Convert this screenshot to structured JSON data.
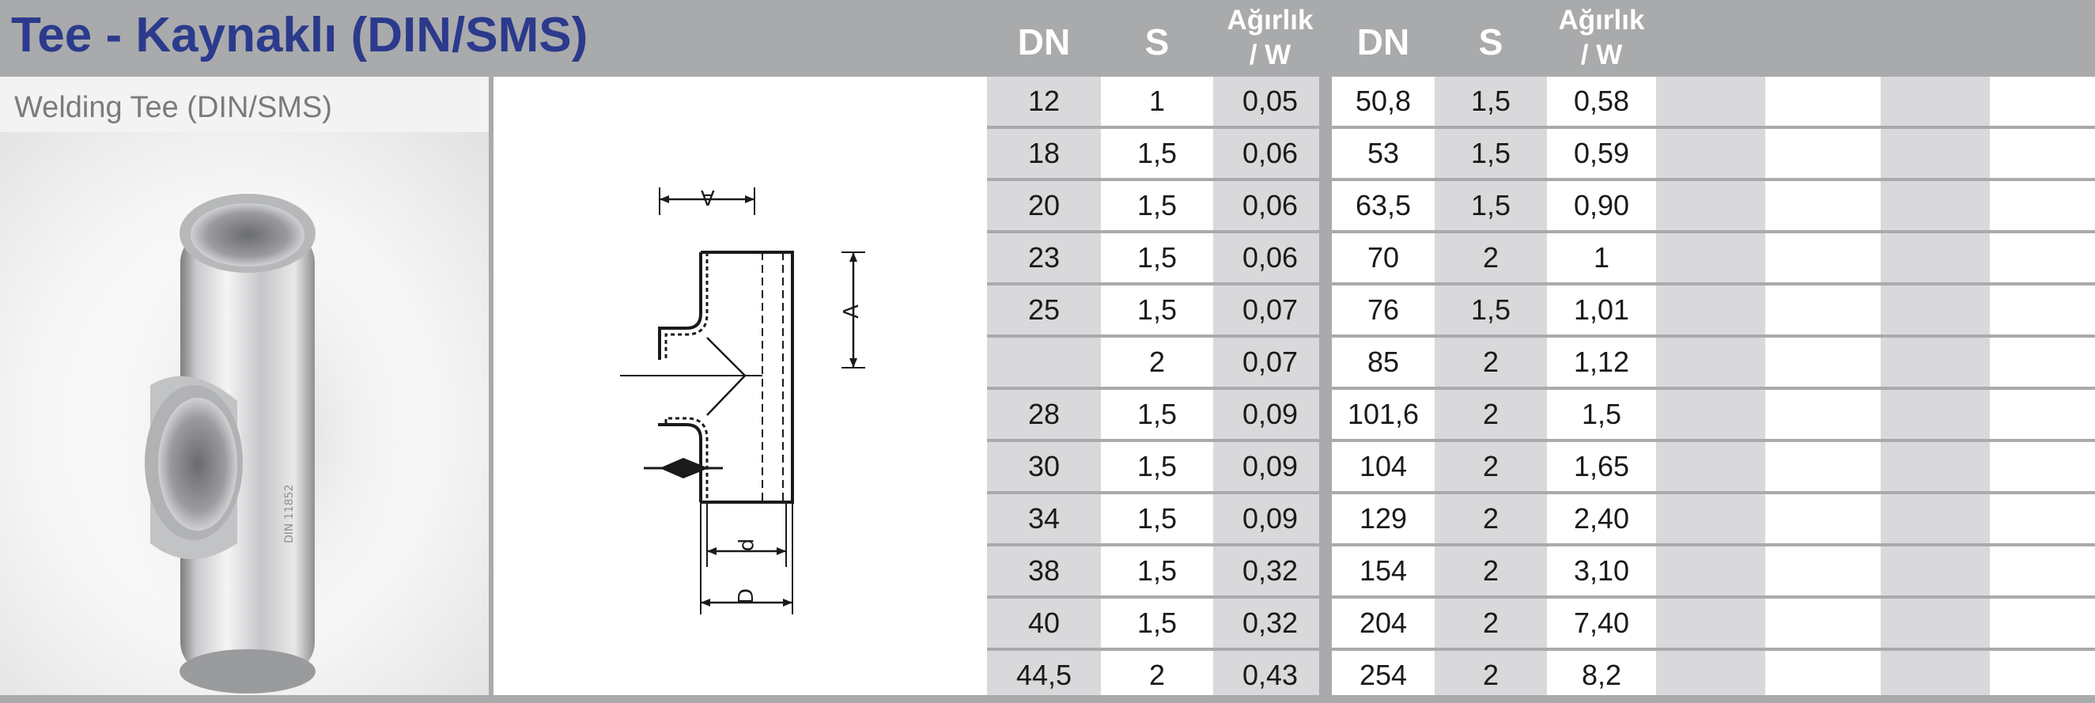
{
  "title": "Tee - Kaynaklı (DIN/SMS)",
  "subtitle": "Welding Tee (DIN/SMS)",
  "table": {
    "headers": {
      "dn1": "DN",
      "s1": "S",
      "w1_line1": "Ağırlık",
      "w1_line2": "/ W",
      "dn2": "DN",
      "s2": "S",
      "w2_line1": "Ağırlık",
      "w2_line2": "/ W"
    },
    "rows": [
      {
        "dn1": "12",
        "s1": "1",
        "w1": "0,05",
        "dn2": "50,8",
        "s2": "1,5",
        "w2": "0,58"
      },
      {
        "dn1": "18",
        "s1": "1,5",
        "w1": "0,06",
        "dn2": "53",
        "s2": "1,5",
        "w2": "0,59"
      },
      {
        "dn1": "20",
        "s1": "1,5",
        "w1": "0,06",
        "dn2": "63,5",
        "s2": "1,5",
        "w2": "0,90"
      },
      {
        "dn1": "23",
        "s1": "1,5",
        "w1": "0,06",
        "dn2": "70",
        "s2": "2",
        "w2": "1"
      },
      {
        "dn1": "25",
        "s1": "1,5",
        "w1": "0,07",
        "dn2": "76",
        "s2": "1,5",
        "w2": "1,01"
      },
      {
        "dn1": "",
        "s1": "2",
        "w1": "0,07",
        "dn2": "85",
        "s2": "2",
        "w2": "1,12"
      },
      {
        "dn1": "28",
        "s1": "1,5",
        "w1": "0,09",
        "dn2": "101,6",
        "s2": "2",
        "w2": "1,5"
      },
      {
        "dn1": "30",
        "s1": "1,5",
        "w1": "0,09",
        "dn2": "104",
        "s2": "2",
        "w2": "1,65"
      },
      {
        "dn1": "34",
        "s1": "1,5",
        "w1": "0,09",
        "dn2": "129",
        "s2": "2",
        "w2": "2,40"
      },
      {
        "dn1": "38",
        "s1": "1,5",
        "w1": "0,32",
        "dn2": "154",
        "s2": "2",
        "w2": "3,10"
      },
      {
        "dn1": "40",
        "s1": "1,5",
        "w1": "0,32",
        "dn2": "204",
        "s2": "2",
        "w2": "7,40"
      },
      {
        "dn1": "44,5",
        "s1": "2",
        "w1": "0,43",
        "dn2": "254",
        "s2": "2",
        "w2": "8,2"
      }
    ]
  },
  "drawing": {
    "label_top": "A",
    "label_side": "A",
    "label_inner": "d",
    "label_outer": "D"
  },
  "colors": {
    "title": "#2b3a8c",
    "header_bg": "#a9aaac",
    "shaded_column": "#d9d9db",
    "subtitle_text": "#7b7b7d"
  }
}
